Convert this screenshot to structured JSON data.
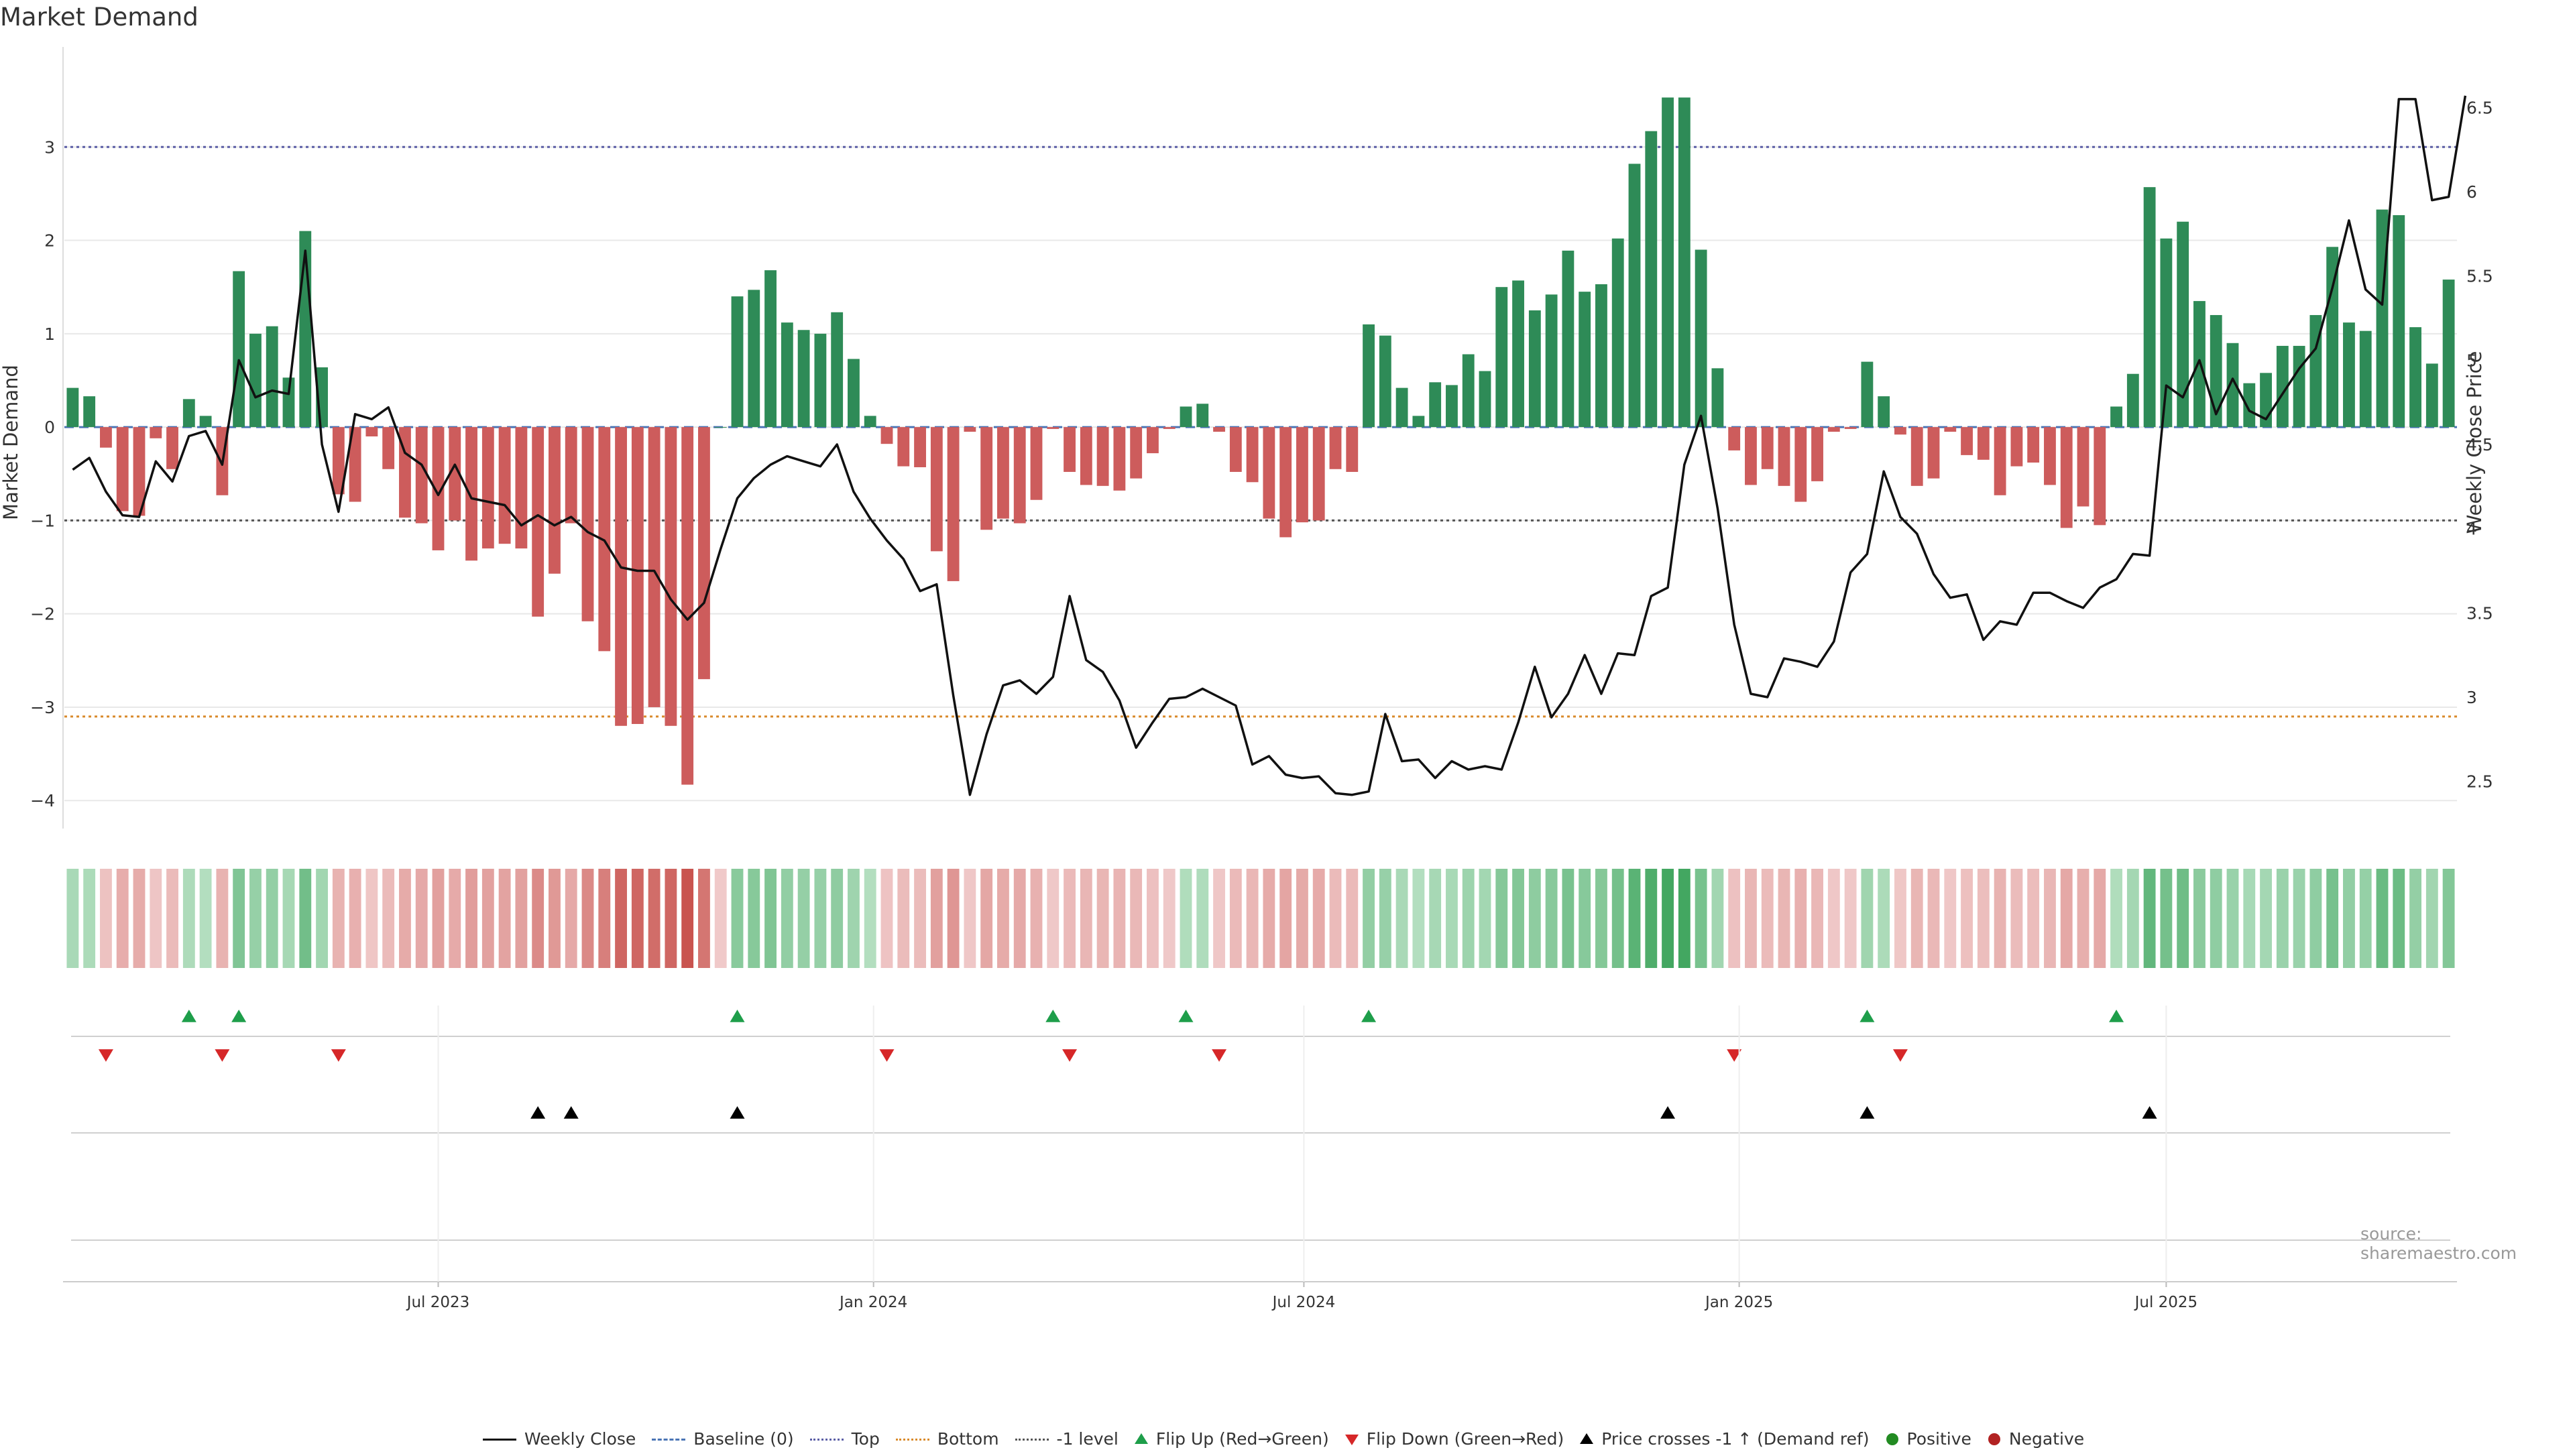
{
  "title": "Market Demand",
  "source": "source: sharemaestro.com",
  "colors": {
    "positive_bar": "#2e8b57",
    "negative_bar": "#cd5c5c",
    "price_line": "#111111",
    "top_line": "#5b5ea6",
    "bottom_line": "#d98a2b",
    "neg1_line": "#555555",
    "baseline": "#4a74b5",
    "flip_up": "#1e9e4a",
    "flip_down": "#d62728",
    "cross": "#000000",
    "positive_dot": "#228b22",
    "negative_dot": "#b22222",
    "grid": "#e8e8e8"
  },
  "legend": {
    "weekly_close": "Weekly Close",
    "baseline": "Baseline (0)",
    "top": "Top",
    "bottom": "Bottom",
    "neg1": "-1 level",
    "flip_up": "Flip Up (Red→Green)",
    "flip_down": "Flip Down (Green→Red)",
    "price_cross": "Price crosses -1 ↑ (Demand ref)",
    "positive": "Positive",
    "negative": "Negative"
  },
  "chart_data": {
    "type": "bar",
    "title": "Market Demand",
    "ylabel": "Market Demand",
    "y2label": "Weekly Close Price",
    "ylim": [
      -4.3,
      4.0
    ],
    "y2lim": [
      2.22,
      6.82
    ],
    "yticks": [
      3,
      2,
      1,
      0,
      -1,
      -2,
      -3,
      -4
    ],
    "y2ticks": [
      6.5,
      6,
      5.5,
      5,
      4.5,
      4,
      3.5,
      3,
      2.5
    ],
    "top_level": 3.0,
    "bottom_level": -3.1,
    "neg1_level": -1.0,
    "baseline": 0,
    "x_start": 0,
    "x_end": 143,
    "xticks": [
      {
        "label": "Jul 2023",
        "week": 22
      },
      {
        "label": "Jan 2024",
        "week": 48.2
      },
      {
        "label": "Jul 2024",
        "week": 74.1
      },
      {
        "label": "Jan 2025",
        "week": 100.3
      },
      {
        "label": "Jul 2025",
        "week": 126.0
      }
    ],
    "weeks": 144,
    "demand": [
      0.42,
      0.33,
      -0.22,
      -0.9,
      -0.95,
      -0.12,
      -0.45,
      0.3,
      0.12,
      -0.73,
      1.67,
      1.0,
      1.08,
      0.53,
      2.1,
      0.64,
      -0.72,
      -0.8,
      -0.1,
      -0.45,
      -0.97,
      -1.03,
      -1.32,
      -1.0,
      -1.43,
      -1.3,
      -1.25,
      -1.3,
      -2.03,
      -1.57,
      -1.03,
      -2.08,
      -2.4,
      -3.2,
      -3.18,
      -3.0,
      -3.2,
      -3.83,
      -2.7,
      0.0,
      1.4,
      1.47,
      1.68,
      1.12,
      1.04,
      1.0,
      1.23,
      0.73,
      0.12,
      -0.18,
      -0.42,
      -0.43,
      -1.33,
      -1.65,
      -0.05,
      -1.1,
      -0.98,
      -1.03,
      -0.78,
      -0.02,
      -0.48,
      -0.62,
      -0.63,
      -0.68,
      -0.55,
      -0.28,
      -0.02,
      0.22,
      0.25,
      -0.05,
      -0.48,
      -0.59,
      -0.98,
      -1.18,
      -1.02,
      -1.0,
      -0.45,
      -0.48,
      1.1,
      0.98,
      0.42,
      0.12,
      0.48,
      0.45,
      0.78,
      0.6,
      1.5,
      1.57,
      1.25,
      1.42,
      1.89,
      1.45,
      1.53,
      2.02,
      2.82,
      3.17,
      3.53,
      3.53,
      1.9,
      0.63,
      -0.25,
      -0.62,
      -0.45,
      -0.63,
      -0.8,
      -0.58,
      -0.05,
      -0.02,
      0.7,
      0.33,
      -0.08,
      -0.63,
      -0.55,
      -0.05,
      -0.3,
      -0.35,
      -0.73,
      -0.42,
      -0.38,
      -0.62,
      -1.08,
      -0.85,
      -1.05,
      0.22,
      0.57,
      2.57,
      2.02,
      2.2,
      1.35,
      1.2,
      0.9,
      0.47,
      0.58,
      0.87,
      0.87,
      1.2,
      1.93,
      1.12,
      1.03,
      2.33,
      2.27,
      1.07,
      0.68,
      1.58
    ],
    "price": [
      4.35,
      4.42,
      4.22,
      4.08,
      4.07,
      4.4,
      4.28,
      4.55,
      4.58,
      4.38,
      5.0,
      4.78,
      4.82,
      4.8,
      5.65,
      4.5,
      4.1,
      4.68,
      4.65,
      4.72,
      4.45,
      4.38,
      4.2,
      4.38,
      4.18,
      4.16,
      4.14,
      4.02,
      4.08,
      4.02,
      4.07,
      3.98,
      3.93,
      3.77,
      3.75,
      3.75,
      3.58,
      3.46,
      3.56,
      3.88,
      4.18,
      4.3,
      4.38,
      4.43,
      4.4,
      4.37,
      4.5,
      4.22,
      4.06,
      3.93,
      3.82,
      3.63,
      3.67,
      3.01,
      2.42,
      2.78,
      3.07,
      3.1,
      3.02,
      3.12,
      3.6,
      3.22,
      3.15,
      2.98,
      2.7,
      2.85,
      2.99,
      3.0,
      3.05,
      3.0,
      2.95,
      2.6,
      2.65,
      2.54,
      2.52,
      2.53,
      2.43,
      2.42,
      2.44,
      2.9,
      2.62,
      2.63,
      2.52,
      2.62,
      2.57,
      2.59,
      2.57,
      2.85,
      3.18,
      2.88,
      3.02,
      3.25,
      3.02,
      3.26,
      3.25,
      3.6,
      3.65,
      4.38,
      4.67,
      4.12,
      3.43,
      3.02,
      3.0,
      3.23,
      3.21,
      3.18,
      3.33,
      3.74,
      3.85,
      4.34,
      4.07,
      3.97,
      3.73,
      3.59,
      3.61,
      3.34,
      3.45,
      3.43,
      3.62,
      3.62,
      3.57,
      3.53,
      3.65,
      3.7,
      3.85,
      3.84,
      4.85,
      4.78,
      5.0,
      4.68,
      4.89,
      4.7,
      4.65,
      4.8,
      4.95,
      5.07,
      5.43,
      5.83,
      5.42,
      5.33,
      6.55,
      6.55,
      5.95,
      5.97,
      6.57
    ],
    "flip_up_weeks": [
      7,
      10,
      40,
      59,
      67,
      78,
      108,
      123
    ],
    "flip_down_weeks": [
      2,
      9,
      16,
      49,
      60,
      69,
      100,
      110
    ],
    "price_cross_weeks": [
      28,
      30,
      40,
      96,
      108,
      125
    ]
  }
}
